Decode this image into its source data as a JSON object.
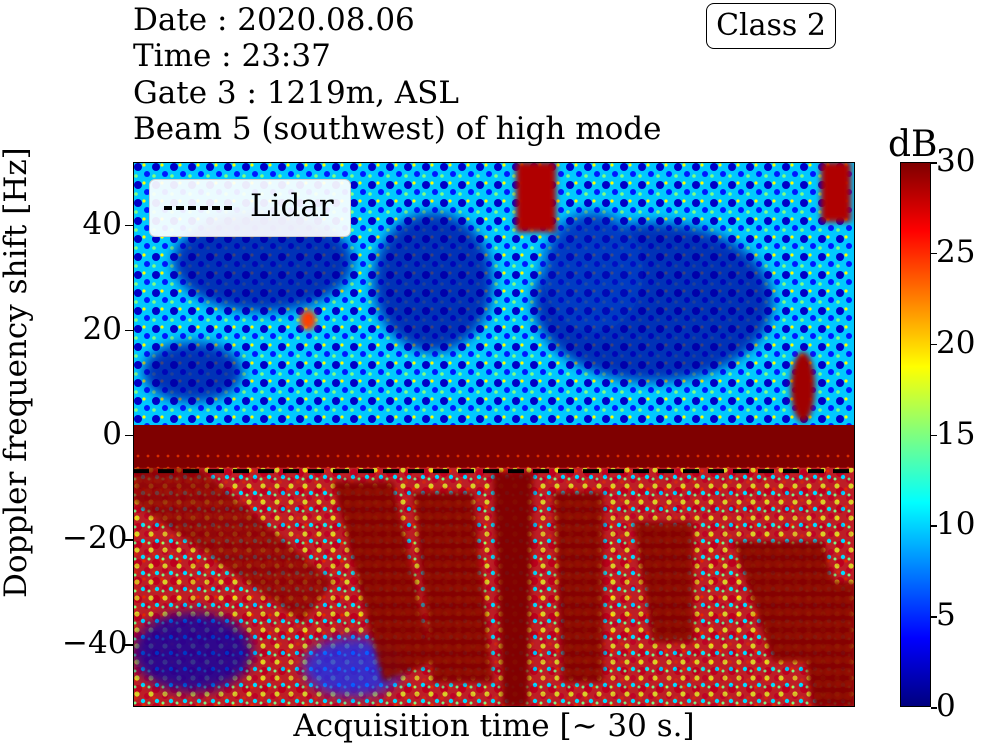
{
  "header": {
    "date": "Date : 2020.08.06",
    "time": "Time : 23:37",
    "gate": "Gate 3 : 1219m, ASL",
    "beam": "Beam 5 (southwest) of high mode",
    "class_badge": "Class 2"
  },
  "chart_data": {
    "type": "heatmap",
    "xlabel": "Acquisition time [~ 30 s.]",
    "ylabel": "Doppler frequency shift [Hz]",
    "ylim": [
      -52,
      52
    ],
    "yticks": [
      40,
      20,
      0,
      -20,
      -40
    ],
    "ytick_labels": [
      "40",
      "20",
      "0",
      "−20",
      "−40"
    ],
    "colorbar": {
      "unit": "dB",
      "range": [
        0,
        30
      ],
      "ticks": [
        30,
        25,
        20,
        15,
        10,
        5,
        0
      ],
      "colormap": "jet"
    },
    "reference_line": {
      "name": "Lidar",
      "y": -7,
      "style": "dashed",
      "color": "#000000"
    },
    "legend_placement": "top-left",
    "grid": false
  },
  "colors": {
    "low": "#00007f",
    "mid": "#7fff7f",
    "high": "#7f0000",
    "line": "#000000"
  }
}
